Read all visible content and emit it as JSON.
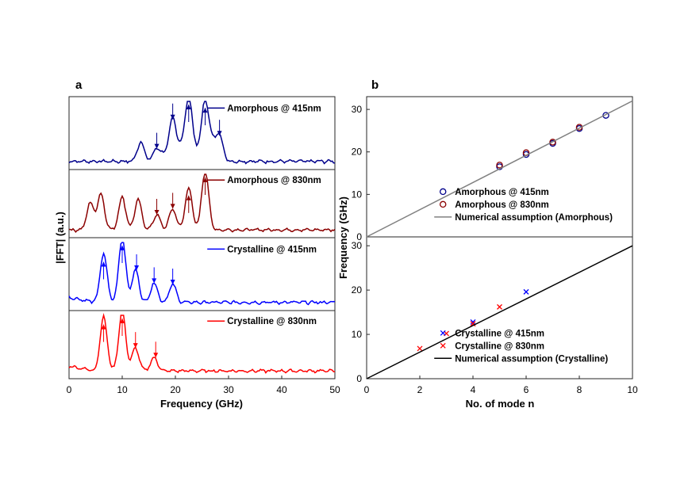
{
  "chart_data": [
    {
      "panel": "a",
      "type": "line",
      "xlabel": "Frequency (GHz)",
      "ylabel": "|FFT| (a.u.)",
      "xlim": [
        0,
        50
      ],
      "xticks": [
        "0",
        "10",
        "20",
        "30",
        "40",
        "50"
      ],
      "stacked": true,
      "series": [
        {
          "name": "Amorphous @ 415nm",
          "color": "#00008B",
          "peaks": [
            [
              18,
              0.1
            ],
            [
              19.5,
              0.65
            ],
            [
              21,
              0.2
            ],
            [
              22.5,
              1.0
            ],
            [
              24,
              0.15
            ],
            [
              25.6,
              0.95
            ],
            [
              27,
              0.25
            ],
            [
              28.3,
              0.4
            ],
            [
              16.5,
              0.2
            ],
            [
              13.5,
              0.3
            ]
          ],
          "arrows": [
            {
              "x": 16.5,
              "dir": "down"
            },
            {
              "x": 19.5,
              "dir": "down"
            },
            {
              "x": 22.5,
              "dir": "up"
            },
            {
              "x": 25.6,
              "dir": "up"
            },
            {
              "x": 28.3,
              "dir": "down"
            }
          ]
        },
        {
          "name": "Amorphous @ 830nm",
          "color": "#8B0000",
          "peaks": [
            [
              16.5,
              0.25
            ],
            [
              19.5,
              0.35
            ],
            [
              22.5,
              0.7
            ],
            [
              25.6,
              1.0
            ],
            [
              10,
              0.55
            ],
            [
              6,
              0.6
            ],
            [
              4,
              0.45
            ],
            [
              13,
              0.5
            ]
          ],
          "arrows": [
            {
              "x": 16.5,
              "dir": "down"
            },
            {
              "x": 19.5,
              "dir": "down"
            },
            {
              "x": 22.5,
              "dir": "up"
            },
            {
              "x": 25.6,
              "dir": "up"
            }
          ]
        },
        {
          "name": "Crystalline @ 415nm",
          "color": "#0000FF",
          "peaks": [
            [
              6.5,
              0.75
            ],
            [
              10,
              1.0
            ],
            [
              12.5,
              0.5
            ],
            [
              16,
              0.3
            ],
            [
              19.5,
              0.28
            ]
          ],
          "arrows": [
            {
              "x": 6.5,
              "dir": "up"
            },
            {
              "x": 10,
              "dir": "up"
            },
            {
              "x": 12.7,
              "dir": "down"
            },
            {
              "x": 16,
              "dir": "down"
            },
            {
              "x": 19.5,
              "dir": "down"
            }
          ]
        },
        {
          "name": "Crystalline @ 830nm",
          "color": "#FF0000",
          "peaks": [
            [
              6.5,
              0.9
            ],
            [
              10,
              1.0
            ],
            [
              12.5,
              0.38
            ],
            [
              16,
              0.22
            ]
          ],
          "arrows": [
            {
              "x": 6.5,
              "dir": "up"
            },
            {
              "x": 10,
              "dir": "up"
            },
            {
              "x": 12.5,
              "dir": "down"
            },
            {
              "x": 16.3,
              "dir": "down"
            }
          ]
        }
      ]
    },
    {
      "panel": "b",
      "type": "scatter",
      "xlabel": "No. of mode n",
      "ylabel": "Frequency (GHz)",
      "xlim": [
        0,
        10
      ],
      "xticks": [
        "0",
        "2",
        "4",
        "6",
        "8",
        "10"
      ],
      "subplots": [
        {
          "ylim": [
            0,
            33
          ],
          "yticks": [
            "0",
            "10",
            "20",
            "30"
          ],
          "series": [
            {
              "name": "Amorphous @ 415nm",
              "marker": "o",
              "color": "#00008B",
              "x": [
                5,
                6,
                7,
                8,
                9
              ],
              "y": [
                16.5,
                19.4,
                22.0,
                25.5,
                28.6
              ]
            },
            {
              "name": "Amorphous @ 830nm",
              "marker": "o",
              "color": "#8B0000",
              "x": [
                5,
                6,
                7,
                8
              ],
              "y": [
                16.9,
                19.8,
                22.3,
                25.8
              ]
            },
            {
              "name": "Numerical assumption (Amorphous)",
              "marker": "line",
              "color": "#808080",
              "x": [
                0,
                10
              ],
              "y": [
                0,
                32.0
              ]
            }
          ]
        },
        {
          "ylim": [
            0,
            32
          ],
          "yticks": [
            "0",
            "10",
            "20",
            "30"
          ],
          "series": [
            {
              "name": "Crystalline @ 415nm",
              "marker": "x",
              "color": "#0000FF",
              "x": [
                4,
                6
              ],
              "y": [
                12.8,
                19.6
              ]
            },
            {
              "name": "Crystalline @ 830nm",
              "marker": "x",
              "color": "#FF0000",
              "x": [
                2,
                3,
                4,
                5
              ],
              "y": [
                6.8,
                10.2,
                12.4,
                16.2
              ]
            },
            {
              "name": "Numerical assumption (Crystalline)",
              "marker": "line",
              "color": "#000000",
              "x": [
                0,
                10
              ],
              "y": [
                0,
                30.0
              ]
            }
          ]
        }
      ]
    }
  ]
}
